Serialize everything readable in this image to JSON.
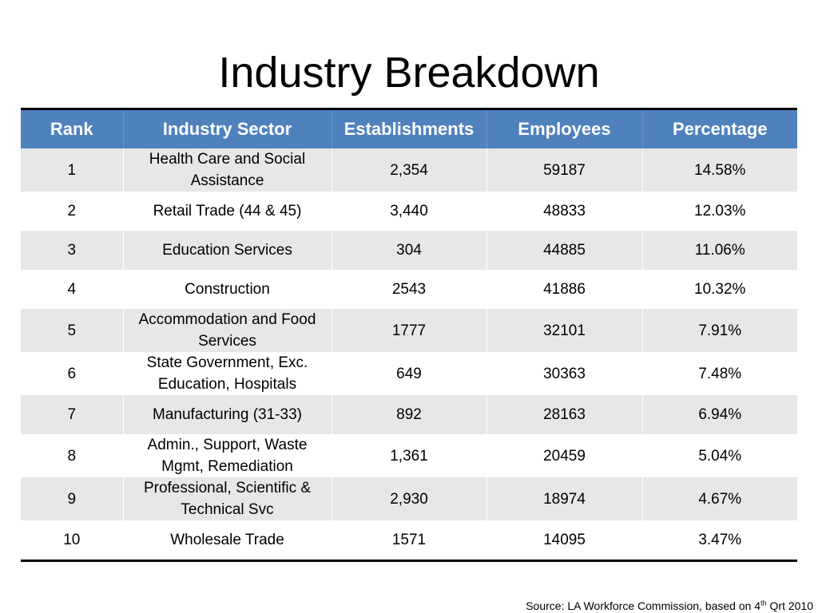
{
  "title": "Industry Breakdown",
  "table": {
    "headers": [
      "Rank",
      "Industry Sector",
      "Establishments",
      "Employees",
      "Percentage"
    ],
    "rows": [
      {
        "rank": "1",
        "sector": "Health Care and Social Assistance",
        "establishments": "2,354",
        "employees": "59187",
        "percentage": "14.58%"
      },
      {
        "rank": "2",
        "sector": "Retail Trade (44 & 45)",
        "establishments": "3,440",
        "employees": "48833",
        "percentage": "12.03%"
      },
      {
        "rank": "3",
        "sector": "Education Services",
        "establishments": "304",
        "employees": "44885",
        "percentage": "11.06%"
      },
      {
        "rank": "4",
        "sector": "Construction",
        "establishments": "2543",
        "employees": "41886",
        "percentage": "10.32%"
      },
      {
        "rank": "5",
        "sector": "Accommodation and Food Services",
        "establishments": "1777",
        "employees": "32101",
        "percentage": "7.91%"
      },
      {
        "rank": "6",
        "sector": "State Government, Exc. Education, Hospitals",
        "establishments": "649",
        "employees": "30363",
        "percentage": "7.48%"
      },
      {
        "rank": "7",
        "sector": "Manufacturing (31-33)",
        "establishments": "892",
        "employees": "28163",
        "percentage": "6.94%"
      },
      {
        "rank": "8",
        "sector": "Admin., Support, Waste Mgmt, Remediation",
        "establishments": "1,361",
        "employees": "20459",
        "percentage": "5.04%"
      },
      {
        "rank": "9",
        "sector": "Professional, Scientific & Technical Svc",
        "establishments": "2,930",
        "employees": "18974",
        "percentage": "4.67%"
      },
      {
        "rank": "10",
        "sector": "Wholesale Trade",
        "establishments": "1571",
        "employees": "14095",
        "percentage": "3.47%"
      }
    ]
  },
  "source": {
    "prefix": "Source: LA Workforce Commission, based on 4",
    "superscript": "th",
    "suffix": " Qrt 2010"
  },
  "colors": {
    "header_bg": "#4f81bd",
    "header_text": "#ffffff",
    "band_row": "#e7e7e7"
  }
}
